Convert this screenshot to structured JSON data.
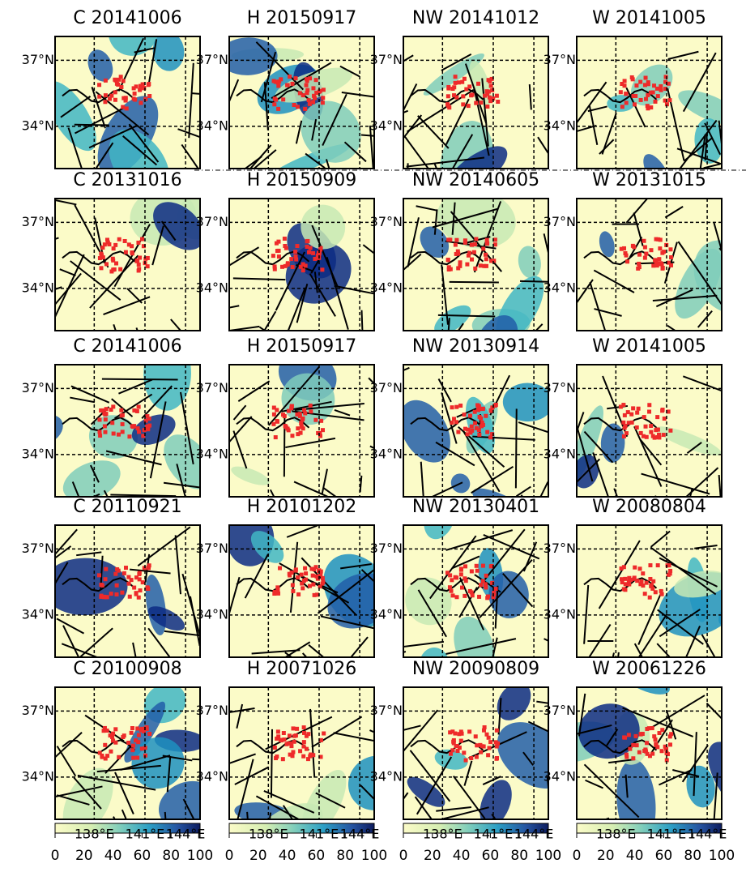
{
  "panels": [
    {
      "title": "C 20141006"
    },
    {
      "title": "H 20150917"
    },
    {
      "title": "NW 20141012"
    },
    {
      "title": "W 20141005"
    },
    {
      "title": "C 20131016"
    },
    {
      "title": "H 20150909"
    },
    {
      "title": "NW 20140605"
    },
    {
      "title": "W 20131015"
    },
    {
      "title": "C 20141006"
    },
    {
      "title": "H 20150917"
    },
    {
      "title": "NW 20130914"
    },
    {
      "title": "W 20141005"
    },
    {
      "title": "C 20110921"
    },
    {
      "title": "H 20101202"
    },
    {
      "title": "NW 20130401"
    },
    {
      "title": "W 20080804"
    },
    {
      "title": "C 20100908"
    },
    {
      "title": "H 20071026"
    },
    {
      "title": "NW 20090809"
    },
    {
      "title": "W 20061226"
    }
  ],
  "lat_labels": [
    "37°N",
    "34°N"
  ],
  "lon_labels": [
    "138°E",
    "141°E",
    "144°E"
  ],
  "colorbar": {
    "lim": [
      0,
      100
    ],
    "ticks": [
      0,
      20,
      40,
      60,
      80,
      100
    ]
  }
}
